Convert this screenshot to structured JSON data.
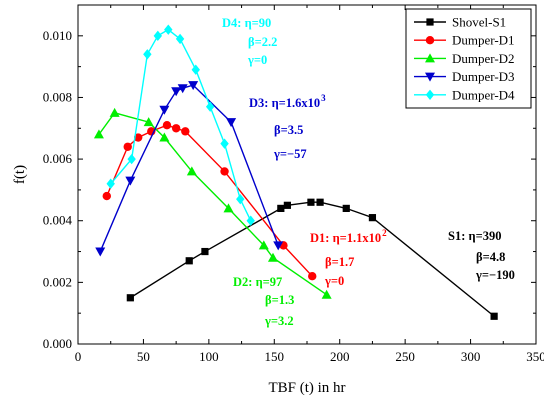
{
  "chart_data": {
    "type": "line",
    "xlabel": "TBF (t) in hr",
    "ylabel": "f(t)",
    "xlim": [
      0,
      350
    ],
    "ylim": [
      0,
      0.011
    ],
    "x_ticks": [
      "0",
      "50",
      "100",
      "150",
      "200",
      "250",
      "300",
      "350"
    ],
    "y_ticks": [
      "0.000",
      "0.002",
      "0.004",
      "0.006",
      "0.008",
      "0.010"
    ],
    "legend_position": "top-right",
    "grid": false,
    "series": [
      {
        "name": "Shovel-S1",
        "color": "#000000",
        "marker": "square",
        "x": [
          40,
          85,
          97,
          155,
          160,
          178,
          185,
          205,
          225,
          318
        ],
        "y": [
          0.0015,
          0.0027,
          0.003,
          0.0044,
          0.0045,
          0.0046,
          0.0046,
          0.0044,
          0.0041,
          0.0009
        ]
      },
      {
        "name": "Dumper-D1",
        "color": "#ff0000",
        "marker": "circle",
        "x": [
          22,
          38,
          46,
          56,
          68,
          75,
          82,
          112,
          157,
          179
        ],
        "y": [
          0.0048,
          0.0064,
          0.0067,
          0.0069,
          0.0071,
          0.007,
          0.0069,
          0.0056,
          0.0032,
          0.0022
        ]
      },
      {
        "name": "Dumper-D2",
        "color": "#00ee00",
        "marker": "triangle-up",
        "x": [
          16,
          28,
          54,
          66,
          87,
          115,
          142,
          149,
          190
        ],
        "y": [
          0.0068,
          0.0075,
          0.0072,
          0.0067,
          0.0056,
          0.0044,
          0.0032,
          0.0028,
          0.0016
        ]
      },
      {
        "name": "Dumper-D3",
        "color": "#0000cc",
        "marker": "triangle-down",
        "x": [
          17,
          40,
          66,
          75,
          80,
          88,
          117,
          153
        ],
        "y": [
          0.003,
          0.0053,
          0.0076,
          0.0082,
          0.0083,
          0.0084,
          0.0072,
          0.0032
        ]
      },
      {
        "name": "Dumper-D4",
        "color": "#00ffff",
        "marker": "diamond",
        "x": [
          25,
          41,
          53,
          61,
          69,
          78,
          90,
          101,
          112,
          124,
          132
        ],
        "y": [
          0.0052,
          0.006,
          0.0094,
          0.01,
          0.0102,
          0.0099,
          0.0089,
          0.0077,
          0.0065,
          0.0047,
          0.004
        ]
      }
    ],
    "annotations": [
      {
        "key": "d4",
        "color": "#00ffff",
        "lines": [
          "D4: η=90",
          "β=2.2",
          "γ=0"
        ]
      },
      {
        "key": "d3",
        "color": "#0000cc",
        "lines": [
          "D3: η=1.6x10",
          "β=3.5",
          "γ=−57"
        ],
        "superscript": "3"
      },
      {
        "key": "d1",
        "color": "#ff0000",
        "lines": [
          "D1: η=1.1x10",
          "β=1.7",
          "γ=0"
        ],
        "superscript": "2"
      },
      {
        "key": "d2",
        "color": "#00ee00",
        "lines": [
          "D2: η=97",
          "β=1.3",
          "γ=3.2"
        ]
      },
      {
        "key": "s1",
        "color": "#000000",
        "lines": [
          "S1: η=390",
          "β=4.8",
          "γ=−190"
        ]
      }
    ]
  }
}
